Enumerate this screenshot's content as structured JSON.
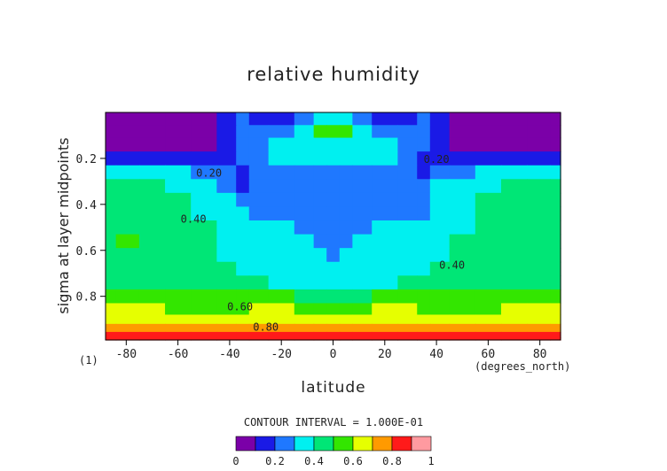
{
  "chart_data": {
    "type": "heatmap",
    "title": "relative humidity",
    "xlabel": "latitude",
    "x_units": "(degrees_north)",
    "ylabel": "sigma at layer midpoints",
    "xlim": [
      -88,
      88
    ],
    "ylim": [
      0,
      0.99
    ],
    "y_inverted": true,
    "x_ticks": [
      -80,
      -60,
      -40,
      -20,
      0,
      20,
      40,
      60,
      80
    ],
    "y_ticks": [
      0.2,
      0.4,
      0.6,
      0.8
    ],
    "y_tick_labels": [
      "0.2",
      "0.4",
      "0.6",
      "0.8"
    ],
    "frame_label": "(1)",
    "contour_interval_text": "CONTOUR INTERVAL = 1.000E-01",
    "contour_labels": [
      {
        "text": "0.20",
        "lat": -48,
        "sigma": 0.28
      },
      {
        "text": "0.20",
        "lat": 40,
        "sigma": 0.22
      },
      {
        "text": "0.40",
        "lat": -54,
        "sigma": 0.48
      },
      {
        "text": "0.40",
        "lat": 46,
        "sigma": 0.68
      },
      {
        "text": "0.60",
        "lat": -36,
        "sigma": 0.86
      },
      {
        "text": "0.80",
        "lat": -26,
        "sigma": 0.95
      }
    ],
    "colorbar": {
      "levels": [
        0,
        0.1,
        0.2,
        0.3,
        0.4,
        0.5,
        0.6,
        0.7,
        0.8,
        0.9,
        1.0
      ],
      "colors": [
        "#7b00a8",
        "#1a1ae6",
        "#1f78ff",
        "#00f0f0",
        "#00e676",
        "#33e600",
        "#e6ff00",
        "#ff9a00",
        "#ff1a1a",
        "#ff9aa0"
      ],
      "tick_labels": [
        "0",
        "0.2",
        "0.4",
        "0.6",
        "0.8",
        "1"
      ]
    },
    "x": [
      -88,
      -80,
      -70,
      -60,
      -50,
      -40,
      -35,
      -30,
      -20,
      -10,
      -5,
      0,
      5,
      10,
      20,
      30,
      35,
      40,
      50,
      60,
      70,
      80,
      88
    ],
    "y": [
      0.03,
      0.08,
      0.14,
      0.2,
      0.26,
      0.32,
      0.38,
      0.44,
      0.5,
      0.56,
      0.62,
      0.68,
      0.74,
      0.8,
      0.86,
      0.9,
      0.94,
      0.97,
      0.99
    ],
    "values": [
      [
        0.05,
        0.05,
        0.05,
        0.05,
        0.05,
        0.12,
        0.22,
        0.15,
        0.12,
        0.25,
        0.32,
        0.38,
        0.32,
        0.25,
        0.12,
        0.15,
        0.22,
        0.12,
        0.05,
        0.05,
        0.05,
        0.05,
        0.05
      ],
      [
        0.05,
        0.05,
        0.05,
        0.05,
        0.05,
        0.12,
        0.22,
        0.25,
        0.25,
        0.32,
        0.55,
        0.58,
        0.55,
        0.32,
        0.25,
        0.25,
        0.22,
        0.12,
        0.05,
        0.05,
        0.05,
        0.05,
        0.05
      ],
      [
        0.08,
        0.08,
        0.08,
        0.08,
        0.08,
        0.15,
        0.22,
        0.25,
        0.32,
        0.35,
        0.36,
        0.36,
        0.36,
        0.35,
        0.32,
        0.25,
        0.22,
        0.15,
        0.08,
        0.08,
        0.08,
        0.08,
        0.08
      ],
      [
        0.15,
        0.15,
        0.15,
        0.15,
        0.15,
        0.15,
        0.22,
        0.25,
        0.32,
        0.35,
        0.35,
        0.35,
        0.35,
        0.35,
        0.32,
        0.25,
        0.18,
        0.12,
        0.12,
        0.12,
        0.12,
        0.15,
        0.15
      ],
      [
        0.35,
        0.32,
        0.32,
        0.32,
        0.28,
        0.22,
        0.15,
        0.25,
        0.25,
        0.25,
        0.25,
        0.25,
        0.25,
        0.25,
        0.25,
        0.25,
        0.18,
        0.28,
        0.28,
        0.32,
        0.32,
        0.35,
        0.35
      ],
      [
        0.45,
        0.45,
        0.42,
        0.35,
        0.32,
        0.25,
        0.15,
        0.25,
        0.25,
        0.25,
        0.25,
        0.25,
        0.25,
        0.25,
        0.25,
        0.25,
        0.25,
        0.32,
        0.35,
        0.38,
        0.45,
        0.45,
        0.45
      ],
      [
        0.45,
        0.45,
        0.45,
        0.42,
        0.35,
        0.32,
        0.25,
        0.25,
        0.25,
        0.25,
        0.25,
        0.25,
        0.25,
        0.25,
        0.25,
        0.25,
        0.25,
        0.32,
        0.35,
        0.42,
        0.45,
        0.45,
        0.45
      ],
      [
        0.45,
        0.45,
        0.45,
        0.42,
        0.38,
        0.32,
        0.32,
        0.25,
        0.25,
        0.25,
        0.25,
        0.25,
        0.25,
        0.25,
        0.25,
        0.25,
        0.28,
        0.32,
        0.38,
        0.42,
        0.45,
        0.45,
        0.45
      ],
      [
        0.45,
        0.45,
        0.45,
        0.45,
        0.42,
        0.32,
        0.32,
        0.32,
        0.35,
        0.25,
        0.25,
        0.25,
        0.25,
        0.25,
        0.35,
        0.32,
        0.32,
        0.32,
        0.38,
        0.45,
        0.45,
        0.45,
        0.45
      ],
      [
        0.45,
        0.55,
        0.45,
        0.45,
        0.42,
        0.35,
        0.32,
        0.35,
        0.38,
        0.32,
        0.25,
        0.25,
        0.25,
        0.32,
        0.38,
        0.35,
        0.32,
        0.35,
        0.42,
        0.45,
        0.45,
        0.45,
        0.45
      ],
      [
        0.45,
        0.45,
        0.45,
        0.45,
        0.45,
        0.38,
        0.35,
        0.35,
        0.38,
        0.35,
        0.32,
        0.25,
        0.32,
        0.35,
        0.38,
        0.35,
        0.35,
        0.38,
        0.45,
        0.45,
        0.45,
        0.45,
        0.45
      ],
      [
        0.45,
        0.45,
        0.45,
        0.45,
        0.45,
        0.42,
        0.38,
        0.35,
        0.35,
        0.35,
        0.35,
        0.32,
        0.35,
        0.35,
        0.35,
        0.35,
        0.38,
        0.42,
        0.45,
        0.45,
        0.45,
        0.45,
        0.45
      ],
      [
        0.45,
        0.45,
        0.45,
        0.45,
        0.45,
        0.45,
        0.45,
        0.42,
        0.38,
        0.35,
        0.35,
        0.35,
        0.35,
        0.35,
        0.38,
        0.42,
        0.45,
        0.45,
        0.45,
        0.45,
        0.45,
        0.45,
        0.45
      ],
      [
        0.55,
        0.52,
        0.52,
        0.52,
        0.52,
        0.52,
        0.52,
        0.52,
        0.52,
        0.45,
        0.45,
        0.45,
        0.45,
        0.45,
        0.52,
        0.52,
        0.52,
        0.52,
        0.52,
        0.52,
        0.52,
        0.52,
        0.55
      ],
      [
        0.65,
        0.65,
        0.62,
        0.55,
        0.55,
        0.55,
        0.58,
        0.62,
        0.62,
        0.55,
        0.55,
        0.55,
        0.55,
        0.55,
        0.62,
        0.62,
        0.58,
        0.55,
        0.55,
        0.55,
        0.62,
        0.65,
        0.65
      ],
      [
        0.65,
        0.65,
        0.65,
        0.65,
        0.65,
        0.65,
        0.65,
        0.65,
        0.65,
        0.65,
        0.65,
        0.65,
        0.65,
        0.65,
        0.65,
        0.65,
        0.65,
        0.65,
        0.65,
        0.65,
        0.65,
        0.65,
        0.65
      ],
      [
        0.75,
        0.75,
        0.75,
        0.75,
        0.75,
        0.75,
        0.75,
        0.75,
        0.78,
        0.75,
        0.75,
        0.75,
        0.75,
        0.75,
        0.78,
        0.75,
        0.75,
        0.75,
        0.75,
        0.75,
        0.75,
        0.75,
        0.75
      ],
      [
        0.85,
        0.85,
        0.85,
        0.85,
        0.85,
        0.85,
        0.85,
        0.85,
        0.85,
        0.85,
        0.85,
        0.85,
        0.85,
        0.85,
        0.85,
        0.85,
        0.85,
        0.85,
        0.85,
        0.85,
        0.85,
        0.85,
        0.85
      ],
      [
        0.85,
        0.85,
        0.85,
        0.85,
        0.85,
        0.85,
        0.85,
        0.85,
        0.85,
        0.85,
        0.85,
        0.85,
        0.85,
        0.85,
        0.85,
        0.85,
        0.85,
        0.85,
        0.85,
        0.85,
        0.85,
        0.85,
        0.85
      ]
    ]
  }
}
